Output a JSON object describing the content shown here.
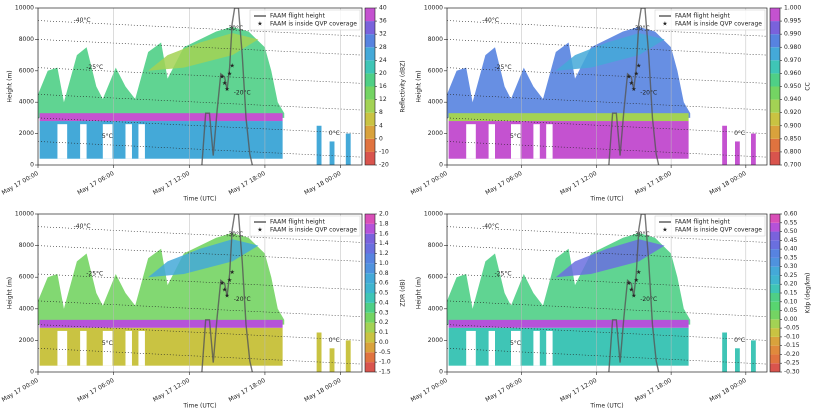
{
  "chart_data": [
    {
      "type": "heatmap",
      "ylabel": "Height (m)",
      "xlabel": "Time (UTC)",
      "ylim": [
        0,
        10000
      ],
      "yticks": [
        0,
        2000,
        4000,
        6000,
        8000,
        10000
      ],
      "xlim": [
        0,
        25.7
      ],
      "xticks": [
        {
          "value": 0,
          "label": "May 17 00:00"
        },
        {
          "value": 6,
          "label": "May 17 06:00"
        },
        {
          "value": 12,
          "label": "May 17 12:00"
        },
        {
          "value": 18,
          "label": "May 17 18:00"
        },
        {
          "value": 24,
          "label": "May 18 00:00"
        }
      ],
      "grid": true,
      "colorbar": {
        "label": "Reflectivity (dBZ)",
        "ticks": [
          -20,
          -10,
          0,
          4,
          8,
          12,
          16,
          20,
          24,
          28,
          32,
          36,
          40
        ],
        "colors": [
          "#d9544d",
          "#e0733f",
          "#d9a23c",
          "#c9c342",
          "#a3d254",
          "#74d463",
          "#4fcf86",
          "#3fc5b6",
          "#44a9d8",
          "#5783e0",
          "#7a62dc",
          "#c452d0"
        ]
      },
      "series": [
        {
          "name": "FAAM flight height",
          "color": "#555555",
          "x": [
            13.0,
            13.3,
            13.6,
            13.9,
            14.2,
            14.5,
            14.8,
            15.0,
            15.2,
            15.4,
            15.6,
            15.9,
            16.2,
            16.5,
            16.8,
            17.0
          ],
          "values": [
            0,
            3300,
            3300,
            600,
            3400,
            5800,
            5600,
            4800,
            6200,
            9000,
            10000,
            10000,
            7000,
            3000,
            700,
            0
          ]
        },
        {
          "name": "FAAM is inside QVP coverage",
          "color": "#000000",
          "x": [
            14.6,
            14.8,
            15.0,
            15.2,
            15.4
          ],
          "values": [
            5600,
            5200,
            4800,
            5800,
            6300
          ]
        }
      ],
      "legend": "upper right",
      "annotations": [
        {
          "text": "-40°C",
          "x": 3.5,
          "y": 9200
        },
        {
          "text": "-30°C",
          "x": 15.6,
          "y": 8700
        },
        {
          "text": "-25°C",
          "x": 4.5,
          "y": 6200
        },
        {
          "text": "-20°C",
          "x": 16.2,
          "y": 4600
        },
        {
          "text": "5°C",
          "x": 5.5,
          "y": 1800
        },
        {
          "text": "0°C",
          "x": 23.5,
          "y": 2000
        }
      ]
    },
    {
      "type": "heatmap",
      "ylabel": "Height (m)",
      "xlabel": "Time (UTC)",
      "ylim": [
        0,
        10000
      ],
      "yticks": [
        0,
        2000,
        4000,
        6000,
        8000,
        10000
      ],
      "xlim": [
        0,
        25.7
      ],
      "xticks": [
        {
          "value": 0,
          "label": "May 17 00:00"
        },
        {
          "value": 6,
          "label": "May 17 06:00"
        },
        {
          "value": 12,
          "label": "May 17 12:00"
        },
        {
          "value": 18,
          "label": "May 17 18:00"
        },
        {
          "value": 24,
          "label": "May 18 00:00"
        }
      ],
      "grid": true,
      "colorbar": {
        "label": "CC",
        "ticks": [
          {
            "value": 0.7,
            "label": "0.700"
          },
          {
            "value": 0.8,
            "label": "0.800"
          },
          {
            "value": 0.85,
            "label": "0.850"
          },
          {
            "value": 0.9,
            "label": "0.900"
          },
          {
            "value": 0.92,
            "label": "0.920"
          },
          {
            "value": 0.94,
            "label": "0.940"
          },
          {
            "value": 0.95,
            "label": "0.950"
          },
          {
            "value": 0.96,
            "label": "0.960"
          },
          {
            "value": 0.97,
            "label": "0.970"
          },
          {
            "value": 0.98,
            "label": "0.980"
          },
          {
            "value": 0.99,
            "label": "0.990"
          },
          {
            "value": 0.995,
            "label": "0.995"
          },
          {
            "value": 1.0,
            "label": "1.000"
          }
        ],
        "colors": [
          "#d9544d",
          "#e0733f",
          "#d9a23c",
          "#c9c342",
          "#a3d254",
          "#74d463",
          "#4fcf86",
          "#3fc5b6",
          "#44a9d8",
          "#5783e0",
          "#7a62dc",
          "#c452d0"
        ]
      },
      "series": [
        {
          "name": "FAAM flight height",
          "color": "#555555",
          "x": [
            13.0,
            13.3,
            13.6,
            13.9,
            14.2,
            14.5,
            14.8,
            15.0,
            15.2,
            15.4,
            15.6,
            15.9,
            16.2,
            16.5,
            16.8,
            17.0
          ],
          "values": [
            0,
            3300,
            3300,
            600,
            3400,
            5800,
            5600,
            4800,
            6200,
            9000,
            10000,
            10000,
            7000,
            3000,
            700,
            0
          ]
        },
        {
          "name": "FAAM is inside QVP coverage",
          "color": "#000000",
          "x": [
            14.6,
            14.8,
            15.0,
            15.2,
            15.4
          ],
          "values": [
            5600,
            5200,
            4800,
            5800,
            6300
          ]
        }
      ],
      "legend": "upper right",
      "annotations": [
        {
          "text": "-40°C",
          "x": 3.5,
          "y": 9200
        },
        {
          "text": "-30°C",
          "x": 15.6,
          "y": 8700
        },
        {
          "text": "-25°C",
          "x": 4.5,
          "y": 6200
        },
        {
          "text": "-20°C",
          "x": 16.2,
          "y": 4600
        },
        {
          "text": "5°C",
          "x": 5.5,
          "y": 1800
        },
        {
          "text": "0°C",
          "x": 23.5,
          "y": 2000
        }
      ]
    },
    {
      "type": "heatmap",
      "ylabel": "Height (m)",
      "xlabel": "Time (UTC)",
      "ylim": [
        0,
        10000
      ],
      "yticks": [
        0,
        2000,
        4000,
        6000,
        8000,
        10000
      ],
      "xlim": [
        0,
        25.7
      ],
      "xticks": [
        {
          "value": 0,
          "label": "May 17 00:00"
        },
        {
          "value": 6,
          "label": "May 17 06:00"
        },
        {
          "value": 12,
          "label": "May 17 12:00"
        },
        {
          "value": 18,
          "label": "May 17 18:00"
        },
        {
          "value": 24,
          "label": "May 18 00:00"
        }
      ],
      "grid": true,
      "colorbar": {
        "label": "ZDR (dB)",
        "ticks": [
          -1.5,
          {
            "value": -1,
            "label": "-1.0"
          },
          -0.5,
          {
            "value": 0,
            "label": "0.0"
          },
          0.1,
          0.2,
          0.3,
          0.4,
          0.5,
          0.6,
          0.8,
          {
            "value": 1,
            "label": "1.0"
          },
          1.2,
          1.4,
          1.6,
          1.8,
          {
            "value": 2,
            "label": "2.0"
          }
        ],
        "colors": [
          "#d9544d",
          "#e0733f",
          "#d9a23c",
          "#c9c342",
          "#a3d254",
          "#74d463",
          "#4fcf86",
          "#3fc5b6",
          "#40b5cf",
          "#44a9d8",
          "#4f92de",
          "#5783e0",
          "#6a6fdf",
          "#7a62dc",
          "#b552d9",
          "#d94fb8"
        ]
      },
      "series": [
        {
          "name": "FAAM flight height",
          "color": "#555555",
          "x": [
            13.0,
            13.3,
            13.6,
            13.9,
            14.2,
            14.5,
            14.8,
            15.0,
            15.2,
            15.4,
            15.6,
            15.9,
            16.2,
            16.5,
            16.8,
            17.0
          ],
          "values": [
            0,
            3300,
            3300,
            600,
            3400,
            5800,
            5600,
            4800,
            6200,
            9000,
            10000,
            10000,
            7000,
            3000,
            700,
            0
          ]
        },
        {
          "name": "FAAM is inside QVP coverage",
          "color": "#000000",
          "x": [
            14.6,
            14.8,
            15.0,
            15.2,
            15.4
          ],
          "values": [
            5600,
            5200,
            4800,
            5800,
            6300
          ]
        }
      ],
      "legend": "upper right",
      "annotations": [
        {
          "text": "-40°C",
          "x": 3.5,
          "y": 9200
        },
        {
          "text": "-30°C",
          "x": 15.6,
          "y": 8700
        },
        {
          "text": "-25°C",
          "x": 4.5,
          "y": 6200
        },
        {
          "text": "-20°C",
          "x": 16.2,
          "y": 4600
        },
        {
          "text": "5°C",
          "x": 5.5,
          "y": 1800
        },
        {
          "text": "0°C",
          "x": 23.5,
          "y": 2000
        }
      ]
    },
    {
      "type": "heatmap",
      "ylabel": "Height (m)",
      "xlabel": "Time (UTC)",
      "ylim": [
        0,
        10000
      ],
      "yticks": [
        0,
        2000,
        4000,
        6000,
        8000,
        10000
      ],
      "xlim": [
        0,
        25.7
      ],
      "xticks": [
        {
          "value": 0,
          "label": "May 17 00:00"
        },
        {
          "value": 6,
          "label": "May 17 06:00"
        },
        {
          "value": 12,
          "label": "May 17 12:00"
        },
        {
          "value": 18,
          "label": "May 17 18:00"
        },
        {
          "value": 24,
          "label": "May 18 00:00"
        }
      ],
      "grid": true,
      "colorbar": {
        "label": "Kdp (deg/km)",
        "ticks": [
          {
            "value": -0.3,
            "label": "-0.30"
          },
          {
            "value": -0.25,
            "label": "-0.25"
          },
          {
            "value": -0.2,
            "label": "-0.20"
          },
          {
            "value": -0.15,
            "label": "-0.15"
          },
          {
            "value": -0.1,
            "label": "-0.10"
          },
          {
            "value": -0.05,
            "label": "-0.05"
          },
          {
            "value": 0,
            "label": "0.00"
          },
          {
            "value": 0.05,
            "label": "0.05"
          },
          {
            "value": 0.1,
            "label": "0.10"
          },
          {
            "value": 0.15,
            "label": "0.15"
          },
          {
            "value": 0.2,
            "label": "0.20"
          },
          {
            "value": 0.25,
            "label": "0.25"
          },
          {
            "value": 0.3,
            "label": "0.30"
          },
          {
            "value": 0.35,
            "label": "0.35"
          },
          {
            "value": 0.4,
            "label": "0.40"
          },
          {
            "value": 0.45,
            "label": "0.45"
          },
          {
            "value": 0.5,
            "label": "0.50"
          },
          {
            "value": 0.55,
            "label": "0.55"
          },
          {
            "value": 0.6,
            "label": "0.60"
          }
        ],
        "colors": [
          "#d9544d",
          "#e0733f",
          "#e08a3c",
          "#d9a23c",
          "#c9c342",
          "#a3d254",
          "#74d463",
          "#58d570",
          "#4fcf86",
          "#3fc5b6",
          "#40b5cf",
          "#44a9d8",
          "#4f92de",
          "#5783e0",
          "#6a6fdf",
          "#7a62dc",
          "#b552d9",
          "#d94fb8"
        ]
      },
      "series": [
        {
          "name": "FAAM flight height",
          "color": "#555555",
          "x": [
            13.0,
            13.3,
            13.6,
            13.9,
            14.2,
            14.5,
            14.8,
            15.0,
            15.2,
            15.4,
            15.6,
            15.9,
            16.2,
            16.5,
            16.8,
            17.0
          ],
          "values": [
            0,
            3300,
            3300,
            600,
            3400,
            5800,
            5600,
            4800,
            6200,
            9000,
            10000,
            10000,
            7000,
            3000,
            700,
            0
          ]
        },
        {
          "name": "FAAM is inside QVP coverage",
          "color": "#000000",
          "x": [
            14.6,
            14.8,
            15.0,
            15.2,
            15.4
          ],
          "values": [
            5600,
            5200,
            4800,
            5800,
            6300
          ]
        }
      ],
      "legend": "upper right",
      "annotations": [
        {
          "text": "-40°C",
          "x": 3.5,
          "y": 9200
        },
        {
          "text": "-30°C",
          "x": 15.6,
          "y": 8700
        },
        {
          "text": "-25°C",
          "x": 4.5,
          "y": 6200
        },
        {
          "text": "-20°C",
          "x": 16.2,
          "y": 4600
        },
        {
          "text": "5°C",
          "x": 5.5,
          "y": 1800
        },
        {
          "text": "0°C",
          "x": 23.5,
          "y": 2000
        }
      ]
    }
  ]
}
